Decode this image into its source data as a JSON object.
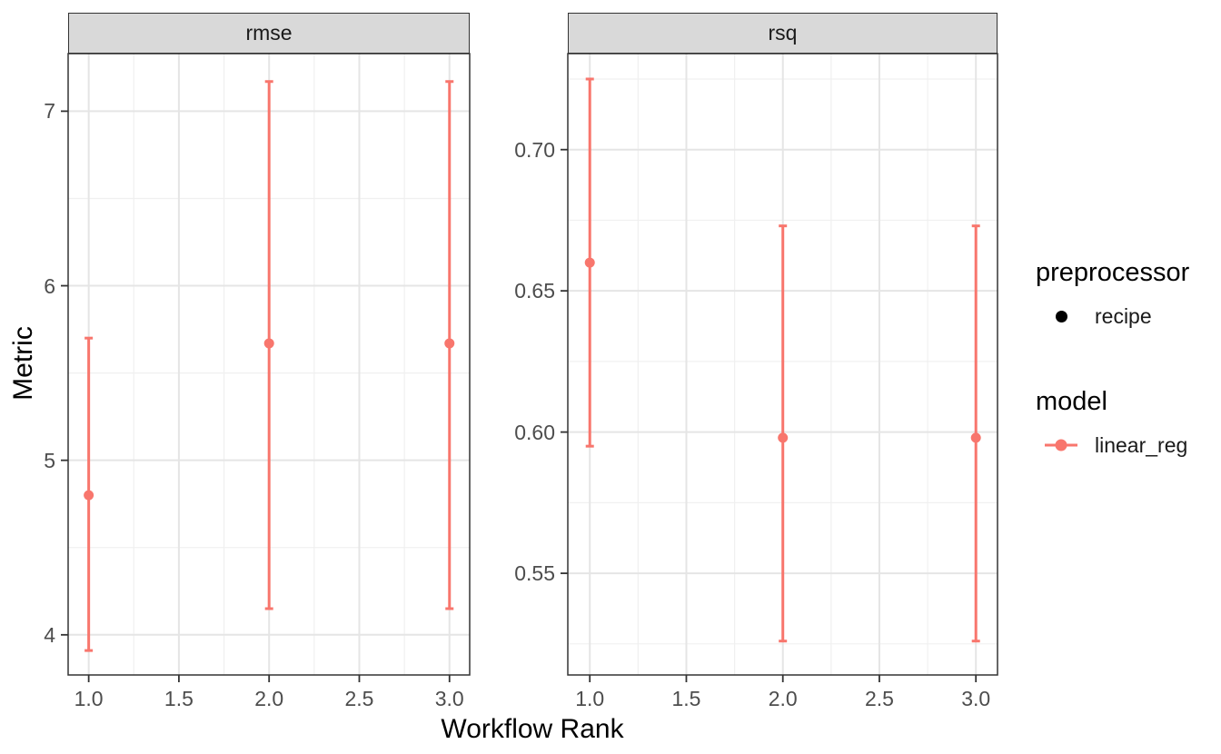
{
  "chart_data": {
    "type": "pointrange",
    "title": "",
    "xlabel": "Workflow Rank",
    "ylabel": "Metric",
    "grid": true,
    "legend_position": "right",
    "series_color": "#F8766D",
    "xlim": [
      0.886,
      3.112
    ],
    "xticks": [
      1.0,
      1.5,
      2.0,
      2.5,
      3.0
    ],
    "xtick_labels": [
      "1.0",
      "1.5",
      "2.0",
      "2.5",
      "3.0"
    ],
    "xminor": [
      1.25,
      1.75,
      2.25,
      2.75
    ],
    "facets": [
      {
        "label": "rmse",
        "x": [
          1.0,
          2.0,
          3.0
        ],
        "means": [
          4.8,
          5.67,
          5.67
        ],
        "lower": [
          3.91,
          4.15,
          4.15
        ],
        "upper": [
          5.7,
          7.17,
          7.17
        ],
        "ylim": [
          3.77,
          7.33
        ],
        "yticks": [
          4,
          5,
          6,
          7
        ],
        "ytick_labels": [
          "4",
          "5",
          "6",
          "7"
        ],
        "yminor": [
          4.5,
          5.5,
          6.5
        ]
      },
      {
        "label": "rsq",
        "x": [
          1.0,
          2.0,
          3.0
        ],
        "means": [
          0.66,
          0.598,
          0.598
        ],
        "lower": [
          0.595,
          0.526,
          0.526
        ],
        "upper": [
          0.725,
          0.673,
          0.673
        ],
        "ylim": [
          0.514,
          0.734
        ],
        "yticks": [
          0.55,
          0.6,
          0.65,
          0.7
        ],
        "ytick_labels": [
          "0.55",
          "0.60",
          "0.65",
          "0.70"
        ],
        "yminor": [
          0.525,
          0.575,
          0.625,
          0.675,
          0.725
        ]
      }
    ],
    "colors": {
      "panel_border": "#333333",
      "strip_fill": "#D9D9D9",
      "grid_major": "#E5E5E5",
      "grid_minor": "#F0F0F0",
      "tick_text": "#4d4d4d",
      "tick_mark": "#333333"
    }
  },
  "legend": {
    "groups": [
      {
        "title": "preprocessor",
        "items": [
          {
            "label": "recipe",
            "marker": "point",
            "color": "#000000"
          }
        ]
      },
      {
        "title": "model",
        "items": [
          {
            "label": "linear_reg",
            "marker": "point-line",
            "color": "#F8766D"
          }
        ]
      }
    ]
  }
}
